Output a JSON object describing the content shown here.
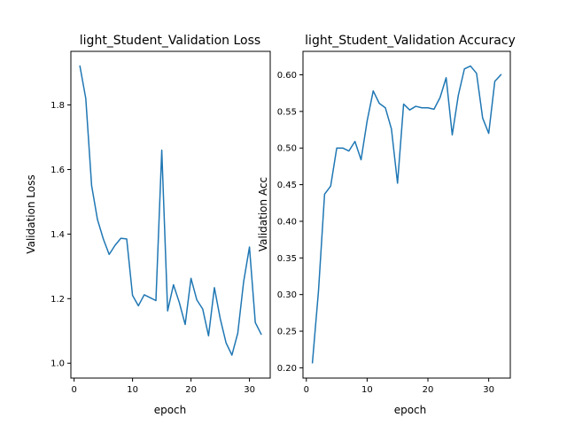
{
  "colors": {
    "line": "#1f77b4",
    "axis": "#000000",
    "background": "#ffffff"
  },
  "chart_data": [
    {
      "type": "line",
      "title": "light_Student_Validation Loss",
      "xlabel": "epoch",
      "ylabel": "Validation Loss",
      "xlim": [
        -0.55,
        33.55
      ],
      "ylim": [
        0.954,
        1.966
      ],
      "xticks": [
        0,
        10,
        20,
        30
      ],
      "xtick_labels": [
        "0",
        "10",
        "20",
        "30"
      ],
      "yticks": [
        1.0,
        1.2,
        1.4,
        1.6,
        1.8
      ],
      "ytick_labels": [
        "1.0",
        "1.2",
        "1.4",
        "1.6",
        "1.8"
      ],
      "grid": false,
      "x": [
        1,
        2,
        3,
        4,
        5,
        6,
        7,
        8,
        9,
        10,
        11,
        12,
        13,
        14,
        15,
        16,
        17,
        18,
        19,
        20,
        21,
        22,
        23,
        24,
        25,
        26,
        27,
        28,
        29,
        30,
        31,
        32
      ],
      "series": [
        {
          "values": [
            1.92,
            1.82,
            1.55,
            1.445,
            1.385,
            1.337,
            1.365,
            1.387,
            1.385,
            1.21,
            1.178,
            1.212,
            1.203,
            1.194,
            1.66,
            1.162,
            1.243,
            1.188,
            1.12,
            1.263,
            1.196,
            1.168,
            1.085,
            1.234,
            1.138,
            1.063,
            1.025,
            1.093,
            1.252,
            1.36,
            1.126,
            1.09
          ]
        }
      ]
    },
    {
      "type": "line",
      "title": "light_Student_Validation Accuracy",
      "xlabel": "epoch",
      "ylabel": "Validation Acc",
      "xlim": [
        -0.55,
        33.55
      ],
      "ylim": [
        0.186,
        0.632
      ],
      "xticks": [
        0,
        10,
        20,
        30
      ],
      "xtick_labels": [
        "0",
        "10",
        "20",
        "30"
      ],
      "yticks": [
        0.2,
        0.25,
        0.3,
        0.35,
        0.4,
        0.45,
        0.5,
        0.55,
        0.6
      ],
      "ytick_labels": [
        "0.20",
        "0.25",
        "0.30",
        "0.35",
        "0.40",
        "0.45",
        "0.50",
        "0.55",
        "0.60"
      ],
      "grid": false,
      "x": [
        1,
        2,
        3,
        4,
        5,
        6,
        7,
        8,
        9,
        10,
        11,
        12,
        13,
        14,
        15,
        16,
        17,
        18,
        19,
        20,
        21,
        22,
        23,
        24,
        25,
        26,
        27,
        28,
        29,
        30,
        31,
        32
      ],
      "series": [
        {
          "values": [
            0.207,
            0.305,
            0.437,
            0.448,
            0.5,
            0.5,
            0.496,
            0.509,
            0.484,
            0.537,
            0.578,
            0.561,
            0.555,
            0.526,
            0.452,
            0.56,
            0.552,
            0.557,
            0.555,
            0.555,
            0.553,
            0.569,
            0.596,
            0.518,
            0.572,
            0.608,
            0.612,
            0.602,
            0.541,
            0.52,
            0.591,
            0.6
          ]
        }
      ]
    }
  ]
}
